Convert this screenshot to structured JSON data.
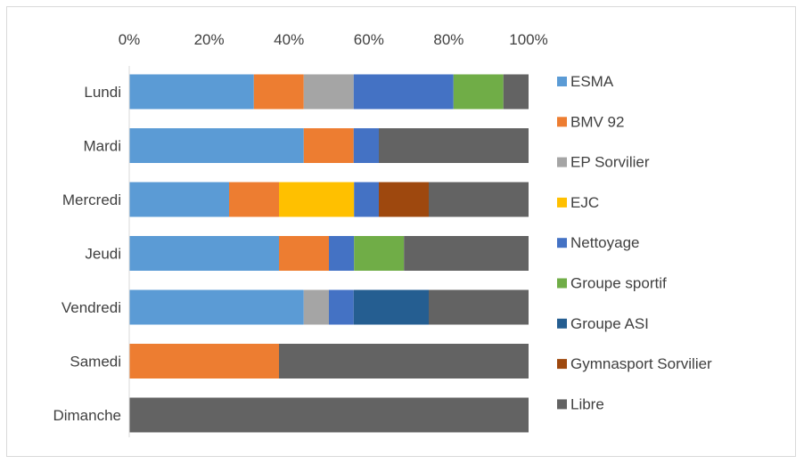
{
  "chart_data": {
    "type": "bar",
    "orientation": "horizontal",
    "stacked": "percent",
    "categories": [
      "Lundi",
      "Mardi",
      "Mercredi",
      "Jeudi",
      "Vendredi",
      "Samedi",
      "Dimanche"
    ],
    "x_ticks": [
      "0%",
      "20%",
      "40%",
      "60%",
      "80%",
      "100%"
    ],
    "xlim": [
      0,
      100
    ],
    "x_axis_position": "top",
    "grid": false,
    "legend_position": "right",
    "title": "",
    "xlabel": "",
    "ylabel": "",
    "series": [
      {
        "name": "ESMA",
        "color": "#5b9bd5",
        "values": [
          31.2,
          43.7,
          25,
          37.5,
          43.7,
          0,
          0
        ]
      },
      {
        "name": "BMV 92",
        "color": "#ed7d31",
        "values": [
          12.5,
          12.5,
          12.5,
          12.5,
          0,
          37.5,
          0
        ]
      },
      {
        "name": "EP Sorvilier",
        "color": "#a5a5a5",
        "values": [
          12.5,
          0,
          0,
          0,
          6.3,
          0,
          0
        ]
      },
      {
        "name": "EJC",
        "color": "#ffc000",
        "values": [
          0,
          0,
          18.8,
          0,
          0,
          0,
          0
        ]
      },
      {
        "name": "Nettoyage",
        "color": "#4472c4",
        "values": [
          25,
          6.3,
          6.2,
          6.3,
          6.2,
          0,
          0
        ]
      },
      {
        "name": "Groupe sportif",
        "color": "#70ad47",
        "values": [
          12.5,
          0,
          0,
          12.5,
          0,
          0,
          0
        ]
      },
      {
        "name": "Groupe ASI",
        "color": "#255e91",
        "values": [
          0,
          0,
          0,
          0,
          18.8,
          0,
          0
        ]
      },
      {
        "name": "Gymnasport Sorvilier",
        "color": "#9e480e",
        "values": [
          0,
          0,
          12.5,
          0,
          0,
          0,
          0
        ]
      },
      {
        "name": "Libre",
        "color": "#636363",
        "values": [
          6.3,
          37.5,
          25,
          31.2,
          25,
          62.5,
          100
        ]
      }
    ]
  }
}
